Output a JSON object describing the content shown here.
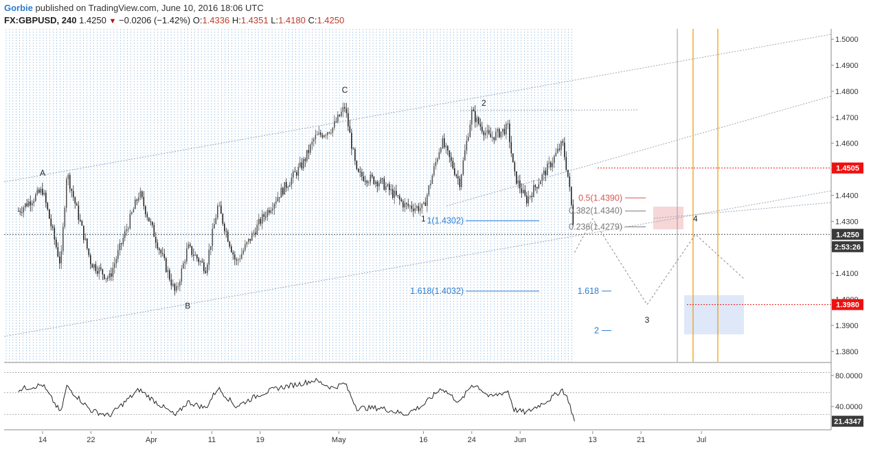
{
  "header": {
    "author": "Gorbie",
    "published": "published on TradingView.com, June 10, 2016 18:06 UTC",
    "symbol": "FX:GBPUSD, 240",
    "last": "1.4250",
    "change": "−0.0206 (−1.42%)",
    "open_label": "O:",
    "open": "1.4336",
    "high_label": "H:",
    "high": "1.4351",
    "low_label": "L:",
    "low": "1.4180",
    "close_label": "C:",
    "close": "1.4250"
  },
  "colors": {
    "bull": "#555555",
    "bear": "#222222",
    "grid_vertical": "#6aa6dd",
    "channel": "#9aa5b5",
    "fib_blue": "#2e7bcf",
    "fib_red": "#d9534f",
    "fib_gray": "#777777",
    "orange": "#f0a000",
    "price_tag": "#3a3a3a",
    "red_tag": "#ee1111",
    "target_box": "#dbe6f8",
    "resist_box": "#f4cfcf"
  },
  "chart_data": [
    {
      "type": "candlestick",
      "title": "FX:GBPUSD, 240",
      "ylim": [
        1.375,
        1.505
      ],
      "y_ticks": [
        "1.5000",
        "1.4900",
        "1.4800",
        "1.4700",
        "1.4600",
        "1.4500",
        "1.4400",
        "1.4300",
        "1.4200",
        "1.4100",
        "1.4000",
        "1.3900",
        "1.3800"
      ],
      "x_ticks": [
        "14",
        "22",
        "Apr",
        "11",
        "19",
        "May",
        "16",
        "24",
        "Jun",
        "13",
        "21",
        "Jul"
      ],
      "swing_path": [
        [
          "Mar 10",
          1.434
        ],
        [
          "Mar 14",
          1.442
        ],
        [
          "Mar 17",
          1.413
        ],
        [
          "Mar 18",
          1.449
        ],
        [
          "Mar 22",
          1.414
        ],
        [
          "Mar 25",
          1.408
        ],
        [
          "Mar 30",
          1.441
        ],
        [
          "Apr 01",
          1.428
        ],
        [
          "Apr 05",
          1.402
        ],
        [
          "Apr 07",
          1.42
        ],
        [
          "Apr 10",
          1.412
        ],
        [
          "Apr 12",
          1.436
        ],
        [
          "Apr 15",
          1.414
        ],
        [
          "Apr 19",
          1.43
        ],
        [
          "Apr 22",
          1.44
        ],
        [
          "Apr 26",
          1.452
        ],
        [
          "Apr 28",
          1.462
        ],
        [
          "May 01",
          1.466
        ],
        [
          "May 03",
          1.474
        ],
        [
          "May 05",
          1.448
        ],
        [
          "May 09",
          1.445
        ],
        [
          "May 13",
          1.436
        ],
        [
          "May 16",
          1.435
        ],
        [
          "May 19",
          1.461
        ],
        [
          "May 22",
          1.445
        ],
        [
          "May 24",
          1.472
        ],
        [
          "May 25",
          1.468
        ],
        [
          "May 27",
          1.462
        ],
        [
          "May 30",
          1.466
        ],
        [
          "May 31",
          1.448
        ],
        [
          "Jun 02",
          1.438
        ],
        [
          "Jun 06",
          1.452
        ],
        [
          "Jun 08",
          1.46
        ],
        [
          "Jun 09",
          1.446
        ],
        [
          "Jun 10",
          1.425
        ]
      ],
      "wave_labels": [
        {
          "label": "A",
          "date": "Mar 14",
          "price": 1.4475
        },
        {
          "label": "B",
          "date": "Apr 07",
          "price": 1.3965
        },
        {
          "label": "C",
          "date": "May 03",
          "price": 1.4795
        },
        {
          "label": "2",
          "date": "May 26",
          "price": 1.4745
        },
        {
          "label": "1",
          "date": "May 16",
          "price": 1.43
        },
        {
          "label": "3",
          "date": "Jun 22",
          "price": 1.391
        },
        {
          "label": "4",
          "date": "Jun 30",
          "price": 1.43
        }
      ],
      "fib_levels": [
        {
          "label": "1(1.4302)",
          "price": 1.4302,
          "color": "fib_blue"
        },
        {
          "label": "1.618(1.4032)",
          "price": 1.4032,
          "color": "fib_blue"
        },
        {
          "label": "0.5(1.4390)",
          "price": 1.439,
          "color": "fib_red"
        },
        {
          "label": "0.382(1.4340)",
          "price": 1.434,
          "color": "fib_gray"
        },
        {
          "label": "0.236(1.4279)",
          "price": 1.4279,
          "color": "fib_gray"
        },
        {
          "label": "1.618",
          "price": 1.4032,
          "color": "fib_blue"
        },
        {
          "label": "2",
          "price": 1.388,
          "color": "fib_blue"
        }
      ],
      "horizontal_levels": [
        {
          "label": "1.4505",
          "price": 1.4505,
          "style": "red"
        },
        {
          "label": "1.3980",
          "price": 1.398,
          "style": "red"
        },
        {
          "label": "1.4250",
          "price": 1.425,
          "style": "last"
        }
      ],
      "countdown": "2:53:26",
      "projection": [
        [
          "Jun 10",
          1.418
        ],
        [
          "Jun 13",
          1.431
        ],
        [
          "Jun 22",
          1.398
        ],
        [
          "Jun 30",
          1.425
        ],
        [
          "Jul 08",
          1.408
        ]
      ]
    },
    {
      "type": "line",
      "title": "RSI",
      "ylim": [
        10,
        95
      ],
      "y_ticks": [
        "80.0000",
        "40.0000"
      ],
      "last_value": "21.4347",
      "levels": [
        84,
        58,
        30
      ],
      "path": [
        [
          "Mar 10",
          62
        ],
        [
          "Mar 14",
          68
        ],
        [
          "Mar 17",
          32
        ],
        [
          "Mar 18",
          66
        ],
        [
          "Mar 22",
          35
        ],
        [
          "Mar 25",
          28
        ],
        [
          "Mar 30",
          62
        ],
        [
          "Apr 01",
          50
        ],
        [
          "Apr 05",
          28
        ],
        [
          "Apr 07",
          46
        ],
        [
          "Apr 10",
          38
        ],
        [
          "Apr 12",
          64
        ],
        [
          "Apr 15",
          40
        ],
        [
          "Apr 19",
          56
        ],
        [
          "Apr 22",
          64
        ],
        [
          "Apr 26",
          70
        ],
        [
          "Apr 28",
          74
        ],
        [
          "May 01",
          64
        ],
        [
          "May 03",
          70
        ],
        [
          "May 05",
          38
        ],
        [
          "May 09",
          38
        ],
        [
          "May 13",
          30
        ],
        [
          "May 16",
          42
        ],
        [
          "May 19",
          64
        ],
        [
          "May 22",
          45
        ],
        [
          "May 24",
          68
        ],
        [
          "May 25",
          66
        ],
        [
          "May 27",
          52
        ],
        [
          "May 30",
          60
        ],
        [
          "May 31",
          36
        ],
        [
          "Jun 02",
          32
        ],
        [
          "Jun 06",
          50
        ],
        [
          "Jun 08",
          62
        ],
        [
          "Jun 09",
          48
        ],
        [
          "Jun 10",
          21
        ]
      ]
    }
  ]
}
